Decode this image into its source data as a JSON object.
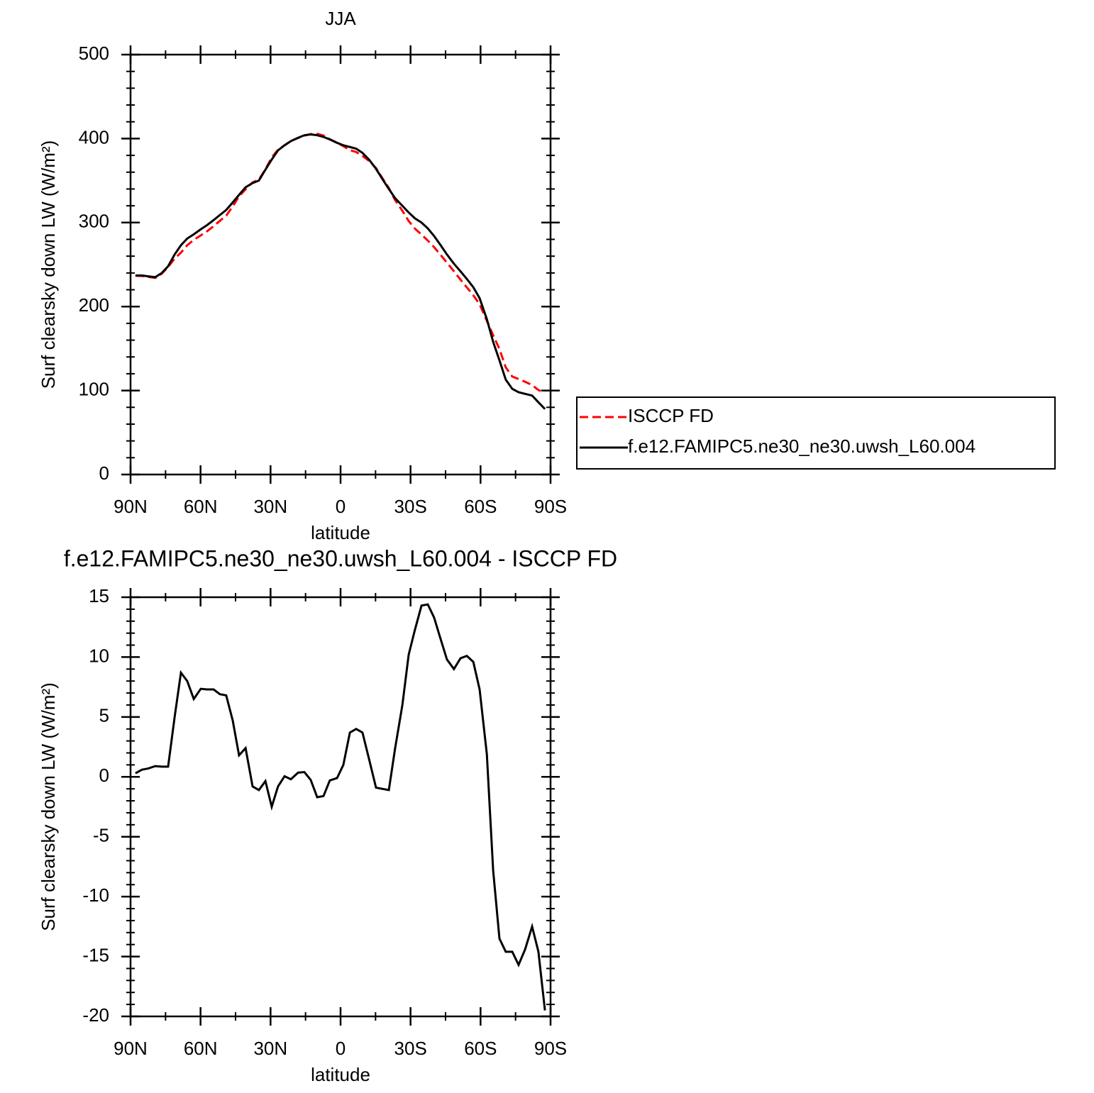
{
  "chart_data": [
    {
      "type": "line",
      "title": "JJA",
      "xlabel": "latitude",
      "ylabel": "Surf clearsky down LW (W/m²)",
      "x": [
        87.9,
        85.1,
        82.4,
        79.4,
        76.6,
        73.9,
        71.1,
        68.4,
        65.7,
        62.9,
        59.9,
        57.2,
        54.4,
        51.7,
        49.0,
        46.2,
        43.5,
        40.7,
        37.7,
        35.0,
        32.2,
        29.5,
        26.8,
        24.0,
        21.3,
        18.2,
        15.5,
        12.8,
        10.0,
        7.3,
        4.6,
        1.5,
        -1.2,
        -4.0,
        -6.7,
        -9.4,
        -12.2,
        -15.2,
        -17.9,
        -20.7,
        -23.4,
        -26.5,
        -29.2,
        -31.9,
        -34.7,
        -37.4,
        -40.1,
        -42.9,
        -45.6,
        -48.6,
        -51.4,
        -54.1,
        -56.9,
        -59.6,
        -62.7,
        -65.4,
        -68.1,
        -70.8,
        -73.6,
        -76.3,
        -79.1,
        -82.1,
        -84.8,
        -87.6
      ],
      "series": [
        {
          "name": "ISCCP FD",
          "color": "#ff0000",
          "linestyle": "dashed",
          "values": [
            236.7,
            236.4,
            235.3,
            234.1,
            239.2,
            247.2,
            257,
            264.3,
            273,
            279.5,
            284.7,
            289.7,
            295.7,
            302.1,
            308.2,
            319.3,
            331.2,
            339.6,
            347.8,
            351.1,
            363.4,
            377.5,
            386.8,
            392,
            397.2,
            400.7,
            403.6,
            405.3,
            405.7,
            403.6,
            399.3,
            395.1,
            391,
            386.3,
            384,
            379.3,
            373.5,
            364.9,
            353,
            341.1,
            326.6,
            314,
            301.8,
            292.7,
            285.7,
            278.6,
            270.7,
            261.5,
            252.2,
            242,
            232.1,
            222.9,
            213.4,
            202.7,
            183.1,
            165.8,
            149.5,
            127.6,
            116.6,
            113.7,
            110.4,
            106.5,
            100.6,
            97.5
          ]
        },
        {
          "name": "f.e12.FAMIPC5.ne30_ne30.uwsh_L60.004",
          "color": "#000000",
          "linestyle": "solid",
          "values": [
            237,
            237,
            236,
            235,
            240,
            248,
            262,
            273,
            281,
            286,
            292,
            297,
            303,
            309,
            315,
            324,
            333,
            342,
            347,
            350,
            363,
            375,
            386,
            392,
            397,
            401,
            404,
            405,
            404,
            402,
            399,
            395,
            392,
            390,
            388,
            383,
            375,
            364,
            352,
            340,
            329,
            320,
            312,
            305,
            300,
            293,
            284,
            273,
            262,
            251,
            242,
            233,
            223,
            210,
            185,
            158,
            136,
            113,
            102,
            98,
            96,
            94,
            86,
            78
          ]
        }
      ],
      "xlim": [
        90,
        -90
      ],
      "xticks": [
        {
          "value": 90,
          "label": "90N"
        },
        {
          "value": 60,
          "label": "60N"
        },
        {
          "value": 30,
          "label": "30N"
        },
        0,
        {
          "value": -30,
          "label": "30S"
        },
        {
          "value": -60,
          "label": "60S"
        },
        {
          "value": -90,
          "label": "90S"
        }
      ],
      "ylim": [
        0,
        500
      ],
      "yticks": [
        0,
        100,
        200,
        300,
        400,
        500
      ],
      "legend": "right"
    },
    {
      "type": "line",
      "title": "f.e12.FAMIPC5.ne30_ne30.uwsh_L60.004 - ISCCP FD",
      "xlabel": "latitude",
      "ylabel": "Surf clearsky down LW (W/m²)",
      "x": [
        87.9,
        85.1,
        82.4,
        79.4,
        76.6,
        73.9,
        71.1,
        68.4,
        65.7,
        62.9,
        59.9,
        57.2,
        54.4,
        51.7,
        49.0,
        46.2,
        43.5,
        40.7,
        37.7,
        35.0,
        32.2,
        29.5,
        26.8,
        24.0,
        21.3,
        18.2,
        15.5,
        12.8,
        10.0,
        7.3,
        4.6,
        1.5,
        -1.2,
        -4.0,
        -6.7,
        -9.4,
        -12.2,
        -15.2,
        -17.9,
        -20.7,
        -23.4,
        -26.5,
        -29.2,
        -31.9,
        -34.7,
        -37.4,
        -40.1,
        -42.9,
        -45.6,
        -48.6,
        -51.4,
        -54.1,
        -56.9,
        -59.6,
        -62.7,
        -65.4,
        -68.1,
        -70.8,
        -73.6,
        -76.3,
        -79.1,
        -82.1,
        -84.8,
        -87.6
      ],
      "series": [
        {
          "color": "#000000",
          "linestyle": "solid",
          "values": [
            0.3,
            0.6,
            0.7,
            0.9,
            0.85,
            0.85,
            5.0,
            8.7,
            8.0,
            6.5,
            7.35,
            7.3,
            7.3,
            6.9,
            6.8,
            4.7,
            1.8,
            2.4,
            -0.8,
            -1.1,
            -0.35,
            -2.5,
            -0.8,
            0.05,
            -0.2,
            0.35,
            0.4,
            -0.25,
            -1.7,
            -1.6,
            -0.3,
            -0.1,
            1.0,
            3.7,
            4.0,
            3.7,
            1.5,
            -0.9,
            -1.0,
            -1.1,
            2.4,
            6.0,
            10.2,
            12.3,
            14.3,
            14.4,
            13.3,
            11.5,
            9.8,
            9.0,
            9.9,
            10.1,
            9.6,
            7.3,
            1.9,
            -7.8,
            -13.5,
            -14.6,
            -14.6,
            -15.7,
            -14.4,
            -12.5,
            -14.6,
            -19.5
          ]
        }
      ],
      "xlim": [
        90,
        -90
      ],
      "xticks": [
        {
          "value": 90,
          "label": "90N"
        },
        {
          "value": 60,
          "label": "60N"
        },
        {
          "value": 30,
          "label": "30N"
        },
        0,
        {
          "value": -30,
          "label": "30S"
        },
        {
          "value": -60,
          "label": "60S"
        },
        {
          "value": -90,
          "label": "90S"
        }
      ],
      "ylim": [
        -20,
        15
      ],
      "yticks": [
        -20,
        -15,
        -10,
        -5,
        0,
        5,
        10,
        15
      ]
    }
  ]
}
